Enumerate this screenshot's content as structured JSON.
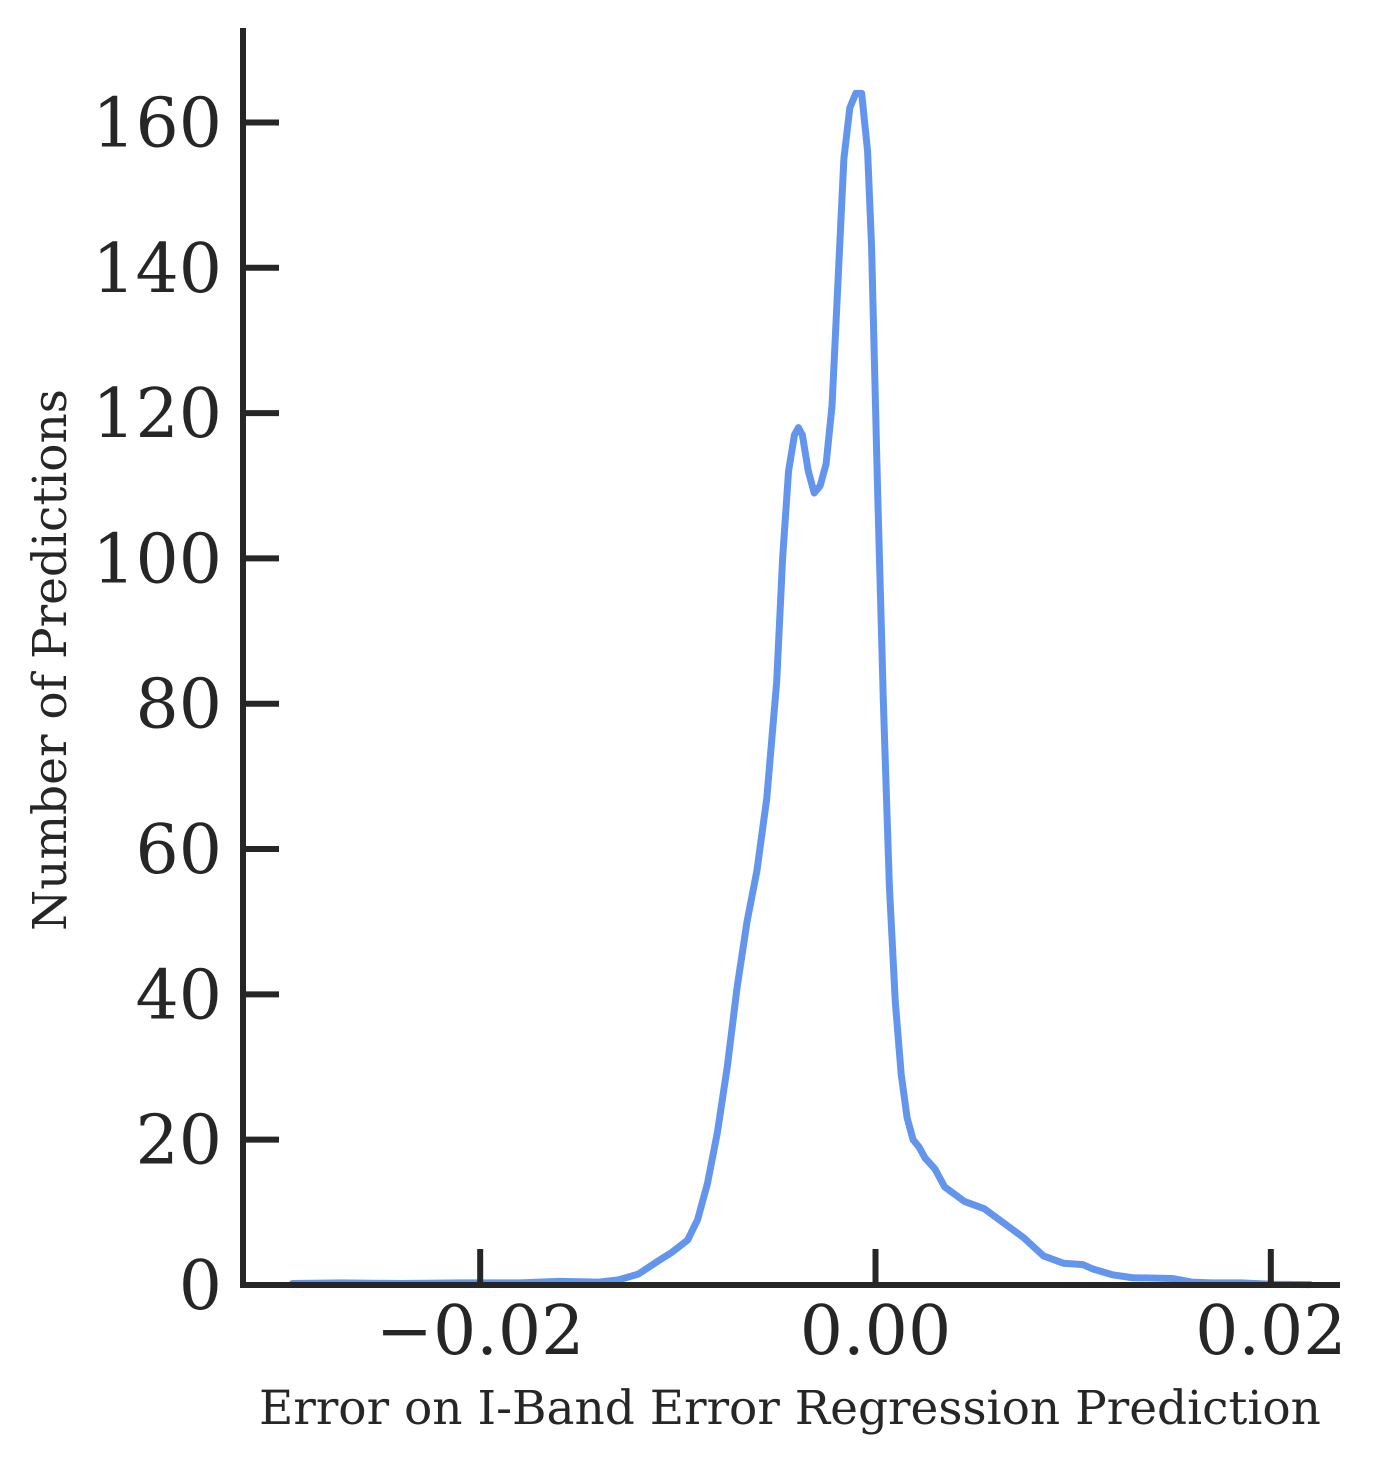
{
  "chart_data": {
    "type": "line",
    "title": "",
    "xlabel": "Error on I-Band Error Regression Prediction",
    "ylabel": "Number of Predictions",
    "xlim": [
      -0.032,
      0.0235
    ],
    "ylim": [
      0,
      173
    ],
    "x_ticks": [
      -0.02,
      0.0,
      0.02
    ],
    "x_tick_labels": [
      "−0.02",
      "0.00",
      "0.02"
    ],
    "y_ticks": [
      0,
      20,
      40,
      60,
      80,
      100,
      120,
      140,
      160
    ],
    "y_tick_labels": [
      "0",
      "20",
      "40",
      "60",
      "80",
      "100",
      "120",
      "140",
      "160"
    ],
    "grid": false,
    "legend": "none",
    "series_color": "#6495ED",
    "axis_color": "#262626",
    "series": [
      {
        "x": [
          -0.0295,
          -0.027,
          -0.024,
          -0.021,
          -0.018,
          -0.016,
          -0.014,
          -0.013,
          -0.012,
          -0.011,
          -0.0103,
          -0.0095,
          -0.009,
          -0.0085,
          -0.008,
          -0.0075,
          -0.007,
          -0.0065,
          -0.006,
          -0.0055,
          -0.005,
          -0.0047,
          -0.0044,
          -0.0041,
          -0.0039,
          -0.0037,
          -0.0034,
          -0.0031,
          -0.0028,
          -0.0025,
          -0.0022,
          -0.0019,
          -0.0016,
          -0.0013,
          -0.001,
          -0.0007,
          -0.0004,
          -0.0002,
          0.0001,
          0.0004,
          0.0007,
          0.001,
          0.0013,
          0.0016,
          0.0019,
          0.0022,
          0.0025,
          0.003,
          0.0035,
          0.0045,
          0.0055,
          0.006,
          0.0065,
          0.0075,
          0.0085,
          0.0095,
          0.0105,
          0.011,
          0.012,
          0.013,
          0.015,
          0.016,
          0.017,
          0.0185,
          0.02,
          0.022
        ],
        "y": [
          0.2,
          0.3,
          0.2,
          0.3,
          0.3,
          0.5,
          0.4,
          0.7,
          1.5,
          3.3,
          4.5,
          6.2,
          9.0,
          14.0,
          21.0,
          30.0,
          41.0,
          50.0,
          57.0,
          67.0,
          83.0,
          100.0,
          112.0,
          117.0,
          118.0,
          117.0,
          112.0,
          109.0,
          110.0,
          113.0,
          121.0,
          138.0,
          155.0,
          162.0,
          164.0,
          164.0,
          156.0,
          143.0,
          110.0,
          80.0,
          55.0,
          39.0,
          29.0,
          23.0,
          20.0,
          19.0,
          17.5,
          16.0,
          13.5,
          11.5,
          10.5,
          9.5,
          8.5,
          6.5,
          4.0,
          3.0,
          2.8,
          2.2,
          1.4,
          1.0,
          0.9,
          0.4,
          0.3,
          0.3,
          0.1,
          0.05
        ]
      }
    ]
  }
}
